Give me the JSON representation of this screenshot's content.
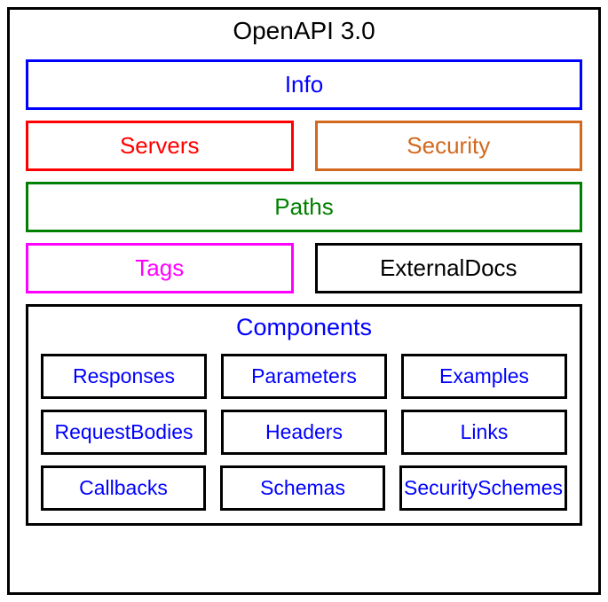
{
  "diagram": {
    "type": "infographic",
    "title": "OpenAPI 3.0",
    "title_color": "#000000",
    "title_fontsize": 28,
    "background_color": "#ffffff",
    "outer_border_color": "#000000",
    "border_width": 3,
    "box_fontsize": 26,
    "comp_box_fontsize": 23,
    "info": {
      "label": "Info",
      "border_color": "#0000ff",
      "text_color": "#0000ff"
    },
    "servers": {
      "label": "Servers",
      "border_color": "#ff0000",
      "text_color": "#ff0000"
    },
    "security": {
      "label": "Security",
      "border_color": "#d2691e",
      "text_color": "#d2691e"
    },
    "paths": {
      "label": "Paths",
      "border_color": "#008000",
      "text_color": "#008000"
    },
    "tags": {
      "label": "Tags",
      "border_color": "#ff00ff",
      "text_color": "#ff00ff"
    },
    "externalDocs": {
      "label": "ExternalDocs",
      "border_color": "#000000",
      "text_color": "#000000"
    },
    "components": {
      "label": "Components",
      "border_color": "#000000",
      "text_color": "#0000ff",
      "items_border_color": "#000000",
      "items_text_color": "#0000ff",
      "rows": [
        [
          "Responses",
          "Parameters",
          "Examples"
        ],
        [
          "RequestBodies",
          "Headers",
          "Links"
        ],
        [
          "Callbacks",
          "Schemas",
          "SecuritySchemes"
        ]
      ]
    }
  }
}
